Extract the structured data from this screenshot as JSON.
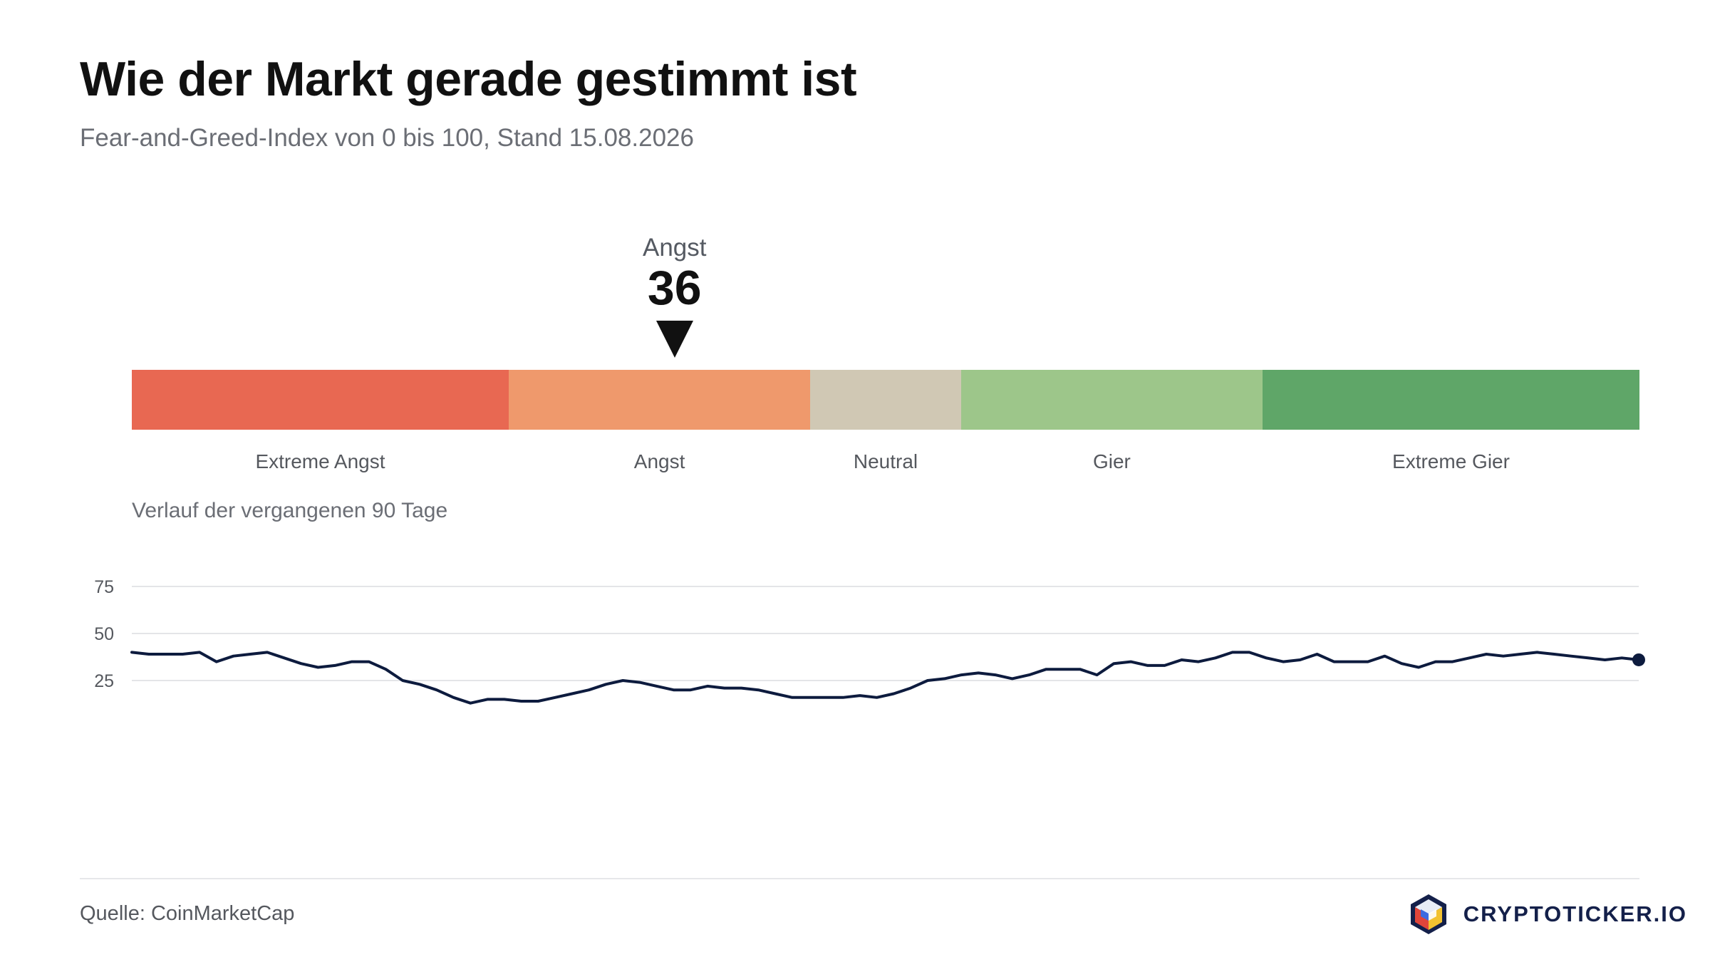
{
  "header": {
    "title": "Wie der Markt gerade gestimmt ist",
    "subtitle": "Fear-and-Greed-Index von 0 bis 100, Stand 15.08.2026"
  },
  "current": {
    "label": "Angst",
    "value": 36
  },
  "scale": {
    "segments": [
      {
        "label": "Extreme Angst",
        "from": 0,
        "to": 25,
        "color": "#e86852"
      },
      {
        "label": "Angst",
        "from": 25,
        "to": 45,
        "color": "#ef996c"
      },
      {
        "label": "Neutral",
        "from": 45,
        "to": 55,
        "color": "#d0c8b4"
      },
      {
        "label": "Gier",
        "from": 55,
        "to": 75,
        "color": "#9dc68a"
      },
      {
        "label": "Extreme Gier",
        "from": 75,
        "to": 100,
        "color": "#5fa668"
      }
    ]
  },
  "history": {
    "caption": "Verlauf der vergangenen 90 Tage"
  },
  "chart_data": {
    "type": "line",
    "title": "",
    "xlabel": "",
    "ylabel": "",
    "ylim": [
      0,
      100
    ],
    "yticks": [
      25,
      50,
      75
    ],
    "grid": true,
    "line_color": "#0d1b3e",
    "series": [
      {
        "values": [
          40,
          39,
          39,
          39,
          40,
          35,
          38,
          39,
          40,
          37,
          34,
          32,
          33,
          35,
          35,
          31,
          25,
          23,
          20,
          16,
          13,
          15,
          15,
          14,
          14,
          16,
          18,
          20,
          23,
          25,
          24,
          22,
          20,
          20,
          22,
          21,
          21,
          20,
          18,
          16,
          16,
          16,
          16,
          17,
          16,
          18,
          21,
          25,
          26,
          28,
          29,
          28,
          26,
          28,
          31,
          31,
          31,
          28,
          34,
          35,
          33,
          33,
          36,
          35,
          37,
          40,
          40,
          37,
          35,
          36,
          39,
          35,
          35,
          35,
          38,
          34,
          32,
          35,
          35,
          37,
          39,
          38,
          39,
          40,
          39,
          38,
          37,
          36,
          37,
          36
        ]
      }
    ]
  },
  "footer": {
    "source": "Quelle: CoinMarketCap",
    "brand": "CRYPTOTICKER.IO"
  }
}
